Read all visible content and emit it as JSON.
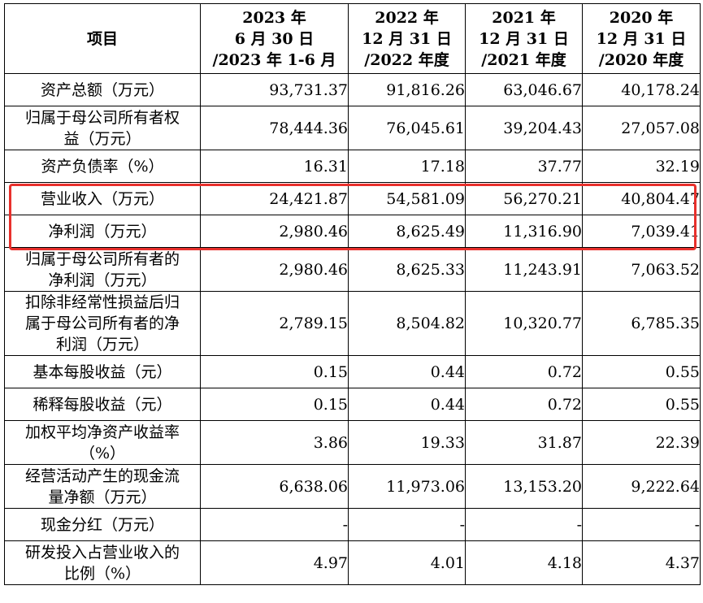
{
  "header": {
    "item": "项目",
    "periods": [
      [
        "2023 年",
        "6 月 30 日",
        "/2023 年 1-6 月"
      ],
      [
        "2022 年",
        "12 月 31 日",
        "/2022 年度"
      ],
      [
        "2021 年",
        "12 月 31 日",
        "/2021 年度"
      ],
      [
        "2020 年",
        "12 月 31 日",
        "/2020 年度"
      ]
    ]
  },
  "rows": [
    {
      "label": [
        "资产总额（万元）"
      ],
      "values": [
        "93,731.37",
        "91,816.26",
        "63,046.67",
        "40,178.24"
      ]
    },
    {
      "label": [
        "归属于母公司所有者权",
        "益（万元）"
      ],
      "values": [
        "78,444.36",
        "76,045.61",
        "39,204.43",
        "27,057.08"
      ]
    },
    {
      "label": [
        "资产负债率（%）"
      ],
      "values": [
        "16.31",
        "17.18",
        "37.77",
        "32.19"
      ]
    },
    {
      "label": [
        "营业收入（万元）"
      ],
      "values": [
        "24,421.87",
        "54,581.09",
        "56,270.21",
        "40,804.47"
      ]
    },
    {
      "label": [
        "净利润（万元）"
      ],
      "values": [
        "2,980.46",
        "8,625.49",
        "11,316.90",
        "7,039.41"
      ]
    },
    {
      "label": [
        "归属于母公司所有者的",
        "净利润（万元）"
      ],
      "values": [
        "2,980.46",
        "8,625.33",
        "11,243.91",
        "7,063.52"
      ]
    },
    {
      "label": [
        "扣除非经常性损益后归",
        "属于母公司所有者的净",
        "利润（万元）"
      ],
      "values": [
        "2,789.15",
        "8,504.82",
        "10,320.77",
        "6,785.35"
      ]
    },
    {
      "label": [
        "基本每股收益（元）"
      ],
      "values": [
        "0.15",
        "0.44",
        "0.72",
        "0.55"
      ]
    },
    {
      "label": [
        "稀释每股收益（元）"
      ],
      "values": [
        "0.15",
        "0.44",
        "0.72",
        "0.55"
      ]
    },
    {
      "label": [
        "加权平均净资产收益率",
        "（%）"
      ],
      "values": [
        "3.86",
        "19.33",
        "31.87",
        "22.39"
      ]
    },
    {
      "label": [
        "经营活动产生的现金流",
        "量净额（万元）"
      ],
      "values": [
        "6,638.06",
        "11,973.06",
        "13,153.20",
        "9,222.64"
      ]
    },
    {
      "label": [
        "现金分红（万元）"
      ],
      "values": [
        "-",
        "-",
        "-",
        "-"
      ]
    },
    {
      "label": [
        "研发投入占营业收入的",
        "比例（%）"
      ],
      "values": [
        "4.97",
        "4.01",
        "4.18",
        "4.37"
      ]
    }
  ],
  "highlight": {
    "color": "#e8302c",
    "rows": [
      "营业收入（万元）",
      "净利润（万元）"
    ]
  }
}
